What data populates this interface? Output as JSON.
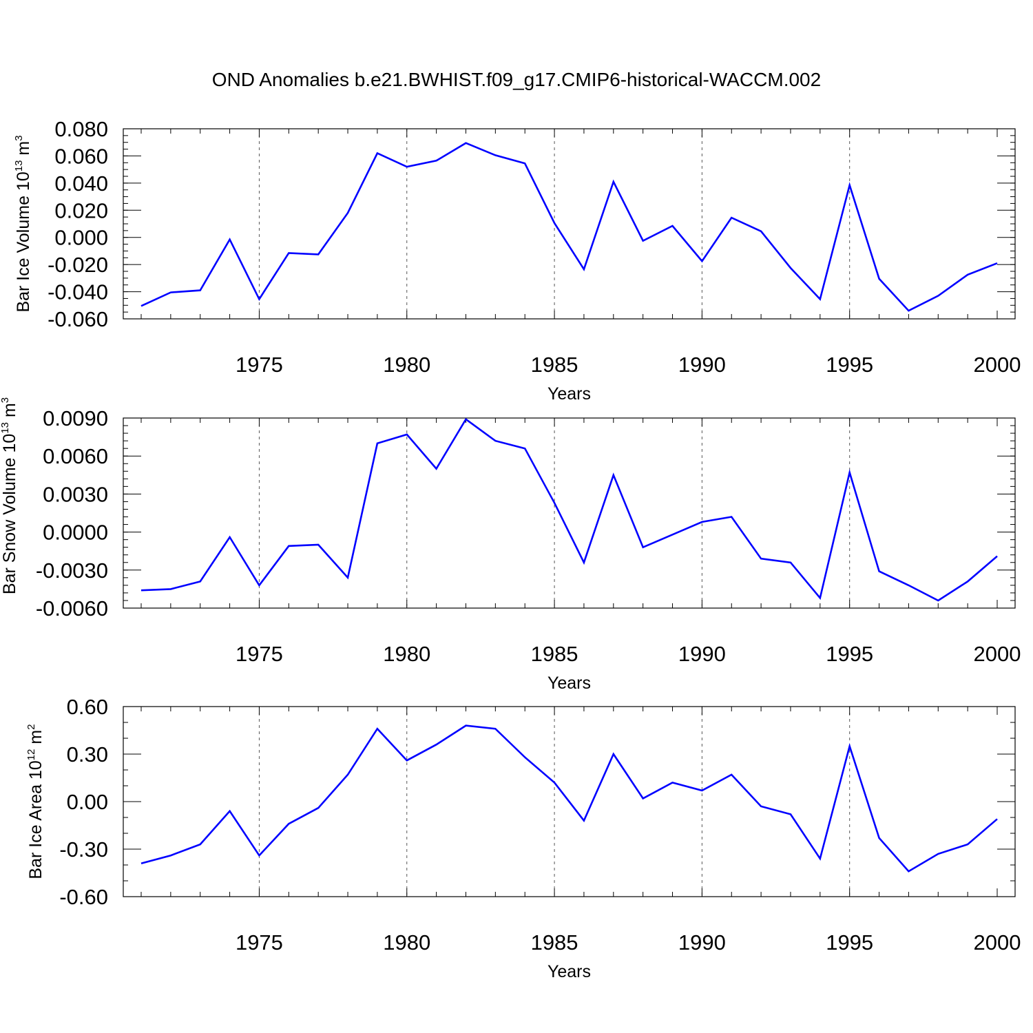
{
  "title": "OND Anomalies b.e21.BWHIST.f09_g17.CMIP6-historical-WACCM.002",
  "series_color": "#0000ff",
  "chart_data": [
    {
      "type": "line",
      "xlabel": "Years",
      "ylabel": {
        "prefix": "Bar Ice Volume 10",
        "exp": "13",
        "unit": " m",
        "unit_exp": "3"
      },
      "xlim": [
        1971,
        2000
      ],
      "ylim": [
        -0.06,
        0.08
      ],
      "yticks": [
        -0.06,
        -0.04,
        -0.02,
        0.0,
        0.02,
        0.04,
        0.06,
        0.08
      ],
      "ytick_labels": [
        "-0.060",
        "-0.040",
        "-0.020",
        "0.000",
        "0.020",
        "0.040",
        "0.060",
        "0.080"
      ],
      "yminor_step": 0.005,
      "xticks": [
        1975,
        1980,
        1985,
        1990,
        1995,
        2000
      ],
      "xtick_labels": [
        "1975",
        "1980",
        "1985",
        "1990",
        "1995",
        "2000"
      ],
      "x": [
        1971,
        1972,
        1973,
        1974,
        1975,
        1976,
        1977,
        1978,
        1979,
        1980,
        1981,
        1982,
        1983,
        1984,
        1985,
        1986,
        1987,
        1988,
        1989,
        1990,
        1991,
        1992,
        1993,
        1994,
        1995,
        1996,
        1997,
        1998,
        1999,
        2000
      ],
      "values": [
        -0.0505,
        -0.0405,
        -0.039,
        -0.0015,
        -0.0455,
        -0.0115,
        -0.0125,
        0.018,
        0.062,
        0.052,
        0.0565,
        0.0695,
        0.0605,
        0.0545,
        0.0105,
        -0.0235,
        0.041,
        -0.0025,
        0.0085,
        -0.0175,
        0.0145,
        0.0045,
        -0.0225,
        -0.0455,
        0.0385,
        -0.0305,
        -0.054,
        -0.043,
        -0.0275,
        -0.019
      ]
    },
    {
      "type": "line",
      "xlabel": "Years",
      "ylabel": {
        "prefix": "Bar Snow Volume 10",
        "exp": "13",
        "unit": " m",
        "unit_exp": "3"
      },
      "xlim": [
        1971,
        2000
      ],
      "ylim": [
        -0.006,
        0.009
      ],
      "yticks": [
        -0.006,
        -0.003,
        0.0,
        0.003,
        0.006,
        0.009
      ],
      "ytick_labels": [
        "-0.0060",
        "-0.0030",
        "0.0000",
        "0.0030",
        "0.0060",
        "0.0090"
      ],
      "yminor_step": 0.0006,
      "xticks": [
        1975,
        1980,
        1985,
        1990,
        1995,
        2000
      ],
      "xtick_labels": [
        "1975",
        "1980",
        "1985",
        "1990",
        "1995",
        "2000"
      ],
      "x": [
        1971,
        1972,
        1973,
        1974,
        1975,
        1976,
        1977,
        1978,
        1979,
        1980,
        1981,
        1982,
        1983,
        1984,
        1985,
        1986,
        1987,
        1988,
        1989,
        1990,
        1991,
        1992,
        1993,
        1994,
        1995,
        1996,
        1997,
        1998,
        1999,
        2000
      ],
      "values": [
        -0.0046,
        -0.0045,
        -0.0039,
        -0.0004,
        -0.0042,
        -0.0011,
        -0.001,
        -0.0036,
        0.007,
        0.0077,
        0.005,
        0.0089,
        0.0072,
        0.0066,
        0.0023,
        -0.0024,
        0.0045,
        -0.0012,
        -0.0002,
        0.0008,
        0.0012,
        -0.0021,
        -0.0024,
        -0.0052,
        0.0047,
        -0.0031,
        -0.0042,
        -0.0054,
        -0.0039,
        -0.0019
      ]
    },
    {
      "type": "line",
      "xlabel": "Years",
      "ylabel": {
        "prefix": "Bar Ice Area 10",
        "exp": "12",
        "unit": " m",
        "unit_exp": "2"
      },
      "xlim": [
        1971,
        2000
      ],
      "ylim": [
        -0.6,
        0.6
      ],
      "yticks": [
        -0.6,
        -0.3,
        0.0,
        0.3,
        0.6
      ],
      "ytick_labels": [
        "-0.60",
        "-0.30",
        "0.00",
        "0.30",
        "0.60"
      ],
      "yminor_step": 0.1,
      "xticks": [
        1975,
        1980,
        1985,
        1990,
        1995,
        2000
      ],
      "xtick_labels": [
        "1975",
        "1980",
        "1985",
        "1990",
        "1995",
        "2000"
      ],
      "x": [
        1971,
        1972,
        1973,
        1974,
        1975,
        1976,
        1977,
        1978,
        1979,
        1980,
        1981,
        1982,
        1983,
        1984,
        1985,
        1986,
        1987,
        1988,
        1989,
        1990,
        1991,
        1992,
        1993,
        1994,
        1995,
        1996,
        1997,
        1998,
        1999,
        2000
      ],
      "values": [
        -0.39,
        -0.34,
        -0.27,
        -0.06,
        -0.34,
        -0.14,
        -0.04,
        0.17,
        0.46,
        0.26,
        0.36,
        0.48,
        0.46,
        0.28,
        0.12,
        -0.12,
        0.3,
        0.02,
        0.12,
        0.07,
        0.17,
        -0.03,
        -0.08,
        -0.36,
        0.35,
        -0.23,
        -0.44,
        -0.33,
        -0.27,
        -0.11
      ]
    }
  ]
}
